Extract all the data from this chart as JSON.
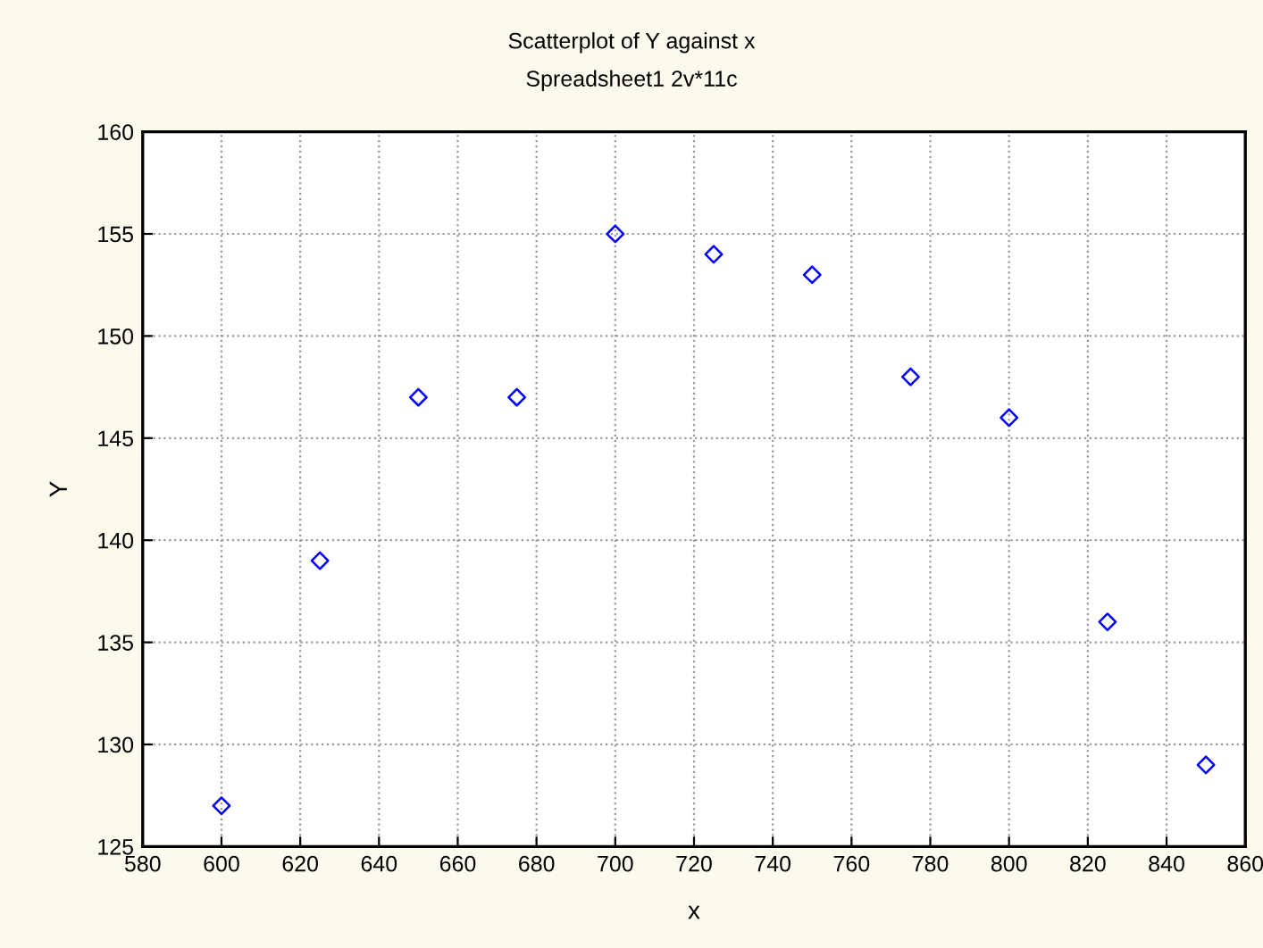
{
  "chart_data": {
    "type": "scatter",
    "title": "Scatterplot of Y against x",
    "subtitle": "Spreadsheet1 2v*11c",
    "xlabel": "x",
    "ylabel": "Y",
    "x": [
      600,
      625,
      650,
      675,
      700,
      725,
      750,
      775,
      800,
      825,
      850
    ],
    "series": [
      {
        "color": "#0000ff",
        "values": [
          127,
          139,
          147,
          147,
          155,
          154,
          153,
          148,
          146,
          136,
          129
        ]
      }
    ],
    "xlim": [
      580,
      860
    ],
    "xticks": [
      580,
      600,
      620,
      640,
      660,
      680,
      700,
      720,
      740,
      760,
      780,
      800,
      820,
      840,
      860
    ],
    "ylim": [
      125,
      160
    ],
    "yticks": [
      125,
      130,
      135,
      140,
      145,
      150,
      155,
      160
    ],
    "grid": true,
    "marker": "diamond",
    "legend": false
  }
}
